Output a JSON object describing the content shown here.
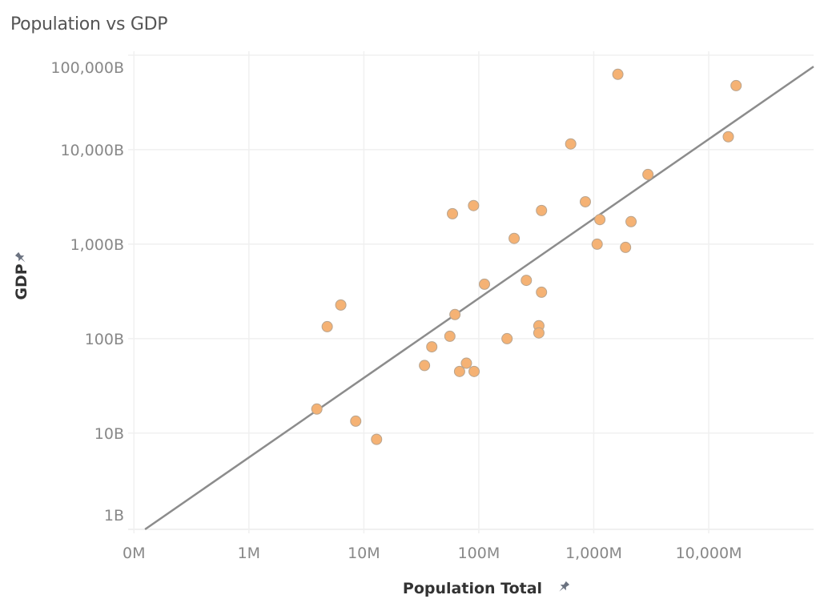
{
  "chart_data": {
    "type": "scatter",
    "title": "Population vs GDP",
    "xlabel": "Population Total",
    "ylabel": "GDP",
    "x_scale": "log",
    "y_scale": "log",
    "x_unit": "M",
    "y_unit": "B",
    "xlim": [
      0.089,
      81700
    ],
    "ylim": [
      0.96,
      110000
    ],
    "x_ticks": [
      {
        "value": 0.1,
        "label": "0M"
      },
      {
        "value": 1,
        "label": "1M"
      },
      {
        "value": 10,
        "label": "10M"
      },
      {
        "value": 100,
        "label": "100M"
      },
      {
        "value": 1000,
        "label": "1,000M"
      },
      {
        "value": 10000,
        "label": "10,000M"
      }
    ],
    "y_ticks": [
      {
        "value": 1,
        "label": "1B"
      },
      {
        "value": 10,
        "label": "10B"
      },
      {
        "value": 100,
        "label": "100B"
      },
      {
        "value": 1000,
        "label": "1,000B"
      },
      {
        "value": 10000,
        "label": "10,000B"
      },
      {
        "value": 100000,
        "label": "100,000B"
      }
    ],
    "grid": true,
    "point_color": "#F5B274",
    "point_border": "#B9A48E",
    "trend_color": "#8C8C8C",
    "trend_line": {
      "type": "log-log linear",
      "log10_intercept": 0.743,
      "slope": 0.842
    },
    "points": [
      {
        "x": 3.9,
        "y": 18
      },
      {
        "x": 8.5,
        "y": 13.4
      },
      {
        "x": 12.9,
        "y": 8.6
      },
      {
        "x": 4.8,
        "y": 134
      },
      {
        "x": 6.3,
        "y": 227
      },
      {
        "x": 33.7,
        "y": 52
      },
      {
        "x": 39,
        "y": 82
      },
      {
        "x": 56,
        "y": 106
      },
      {
        "x": 62,
        "y": 180
      },
      {
        "x": 68,
        "y": 45
      },
      {
        "x": 78,
        "y": 55
      },
      {
        "x": 91,
        "y": 45
      },
      {
        "x": 59,
        "y": 2100
      },
      {
        "x": 90,
        "y": 2560
      },
      {
        "x": 112,
        "y": 377
      },
      {
        "x": 176,
        "y": 100
      },
      {
        "x": 203,
        "y": 1150
      },
      {
        "x": 259,
        "y": 414
      },
      {
        "x": 333,
        "y": 137
      },
      {
        "x": 333,
        "y": 115
      },
      {
        "x": 351,
        "y": 310
      },
      {
        "x": 351,
        "y": 2270
      },
      {
        "x": 630,
        "y": 11500
      },
      {
        "x": 845,
        "y": 2810
      },
      {
        "x": 1130,
        "y": 1820
      },
      {
        "x": 1070,
        "y": 1000
      },
      {
        "x": 1620,
        "y": 62700
      },
      {
        "x": 1890,
        "y": 925
      },
      {
        "x": 2110,
        "y": 1730
      },
      {
        "x": 2960,
        "y": 5460
      },
      {
        "x": 14800,
        "y": 13700
      },
      {
        "x": 17300,
        "y": 47600
      }
    ]
  }
}
